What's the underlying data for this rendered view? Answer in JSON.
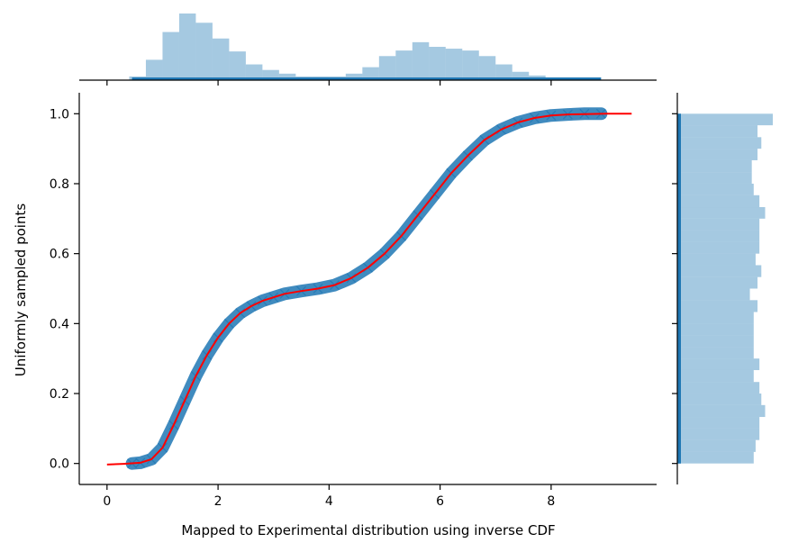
{
  "chart_data": {
    "type": "scatter",
    "title": "",
    "xlabel": "Mapped to Experimental distribution using inverse CDF",
    "ylabel": "Uniformly sampled points",
    "xlim": [
      -0.5,
      9.9
    ],
    "ylim": [
      -0.06,
      1.06
    ],
    "xticks": [
      0,
      2,
      4,
      6,
      8
    ],
    "yticks": [
      0.0,
      0.2,
      0.4,
      0.6,
      0.8,
      1.0
    ],
    "xtick_labels": [
      "0",
      "2",
      "4",
      "6",
      "8"
    ],
    "ytick_labels": [
      "0.0",
      "0.2",
      "0.4",
      "0.6",
      "0.8",
      "1.0"
    ],
    "grid": false,
    "series": [
      {
        "marker": "x",
        "color": "#1f77b4",
        "x": [
          0.45,
          0.6,
          0.8,
          1.0,
          1.2,
          1.4,
          1.6,
          1.8,
          2.0,
          2.2,
          2.4,
          2.6,
          2.8,
          3.0,
          3.2,
          3.5,
          3.8,
          4.1,
          4.4,
          4.7,
          5.0,
          5.3,
          5.6,
          5.9,
          6.2,
          6.5,
          6.8,
          7.1,
          7.4,
          7.7,
          8.0,
          8.3,
          8.6,
          8.9
        ],
        "y": [
          0.0,
          0.002,
          0.012,
          0.045,
          0.11,
          0.18,
          0.25,
          0.31,
          0.36,
          0.4,
          0.43,
          0.45,
          0.465,
          0.475,
          0.485,
          0.493,
          0.5,
          0.51,
          0.53,
          0.56,
          0.6,
          0.65,
          0.71,
          0.77,
          0.83,
          0.88,
          0.925,
          0.955,
          0.975,
          0.988,
          0.995,
          0.998,
          1.0,
          1.0
        ]
      },
      {
        "type": "line",
        "color": "#ff0000",
        "x": [
          0.0,
          0.3,
          0.6,
          0.8,
          1.0,
          1.2,
          1.4,
          1.6,
          1.8,
          2.0,
          2.2,
          2.4,
          2.6,
          2.8,
          3.0,
          3.2,
          3.5,
          3.8,
          4.1,
          4.4,
          4.7,
          5.0,
          5.3,
          5.6,
          5.9,
          6.2,
          6.5,
          6.8,
          7.1,
          7.4,
          7.7,
          8.0,
          8.3,
          8.6,
          9.0,
          9.45
        ],
        "y": [
          -0.003,
          -0.001,
          0.002,
          0.012,
          0.045,
          0.11,
          0.18,
          0.25,
          0.31,
          0.36,
          0.4,
          0.43,
          0.45,
          0.465,
          0.475,
          0.485,
          0.493,
          0.5,
          0.51,
          0.53,
          0.56,
          0.6,
          0.65,
          0.71,
          0.77,
          0.83,
          0.88,
          0.925,
          0.955,
          0.975,
          0.988,
          0.995,
          0.998,
          0.999,
          1.0,
          1.0
        ]
      }
    ],
    "marginal_x_hist": {
      "color": "#1f77b4",
      "bins": [
        0.4,
        0.7,
        1.0,
        1.3,
        1.6,
        1.9,
        2.2,
        2.5,
        2.8,
        3.1,
        3.4,
        3.7,
        4.0,
        4.3,
        4.6,
        4.9,
        5.2,
        5.5,
        5.8,
        6.1,
        6.4,
        6.7,
        7.0,
        7.3,
        7.6,
        7.9,
        8.2,
        8.5,
        8.8
      ],
      "counts": [
        4,
        22,
        52,
        72,
        62,
        45,
        31,
        17,
        11,
        7,
        4,
        4,
        4,
        7,
        14,
        26,
        32,
        41,
        36,
        34,
        32,
        26,
        17,
        9,
        5,
        2,
        1,
        1
      ]
    },
    "marginal_y_hist": {
      "color": "#1f77b4",
      "bins": [
        0.0,
        0.033,
        0.067,
        0.1,
        0.133,
        0.167,
        0.2,
        0.233,
        0.267,
        0.3,
        0.333,
        0.367,
        0.4,
        0.433,
        0.467,
        0.5,
        0.533,
        0.567,
        0.6,
        0.633,
        0.667,
        0.7,
        0.733,
        0.767,
        0.8,
        0.833,
        0.867,
        0.9,
        0.933,
        0.967,
        1.0
      ],
      "counts": [
        80,
        82,
        86,
        86,
        92,
        88,
        86,
        80,
        86,
        80,
        80,
        80,
        80,
        84,
        76,
        84,
        88,
        82,
        86,
        86,
        86,
        92,
        86,
        80,
        78,
        78,
        84,
        88,
        84,
        100
      ]
    }
  }
}
